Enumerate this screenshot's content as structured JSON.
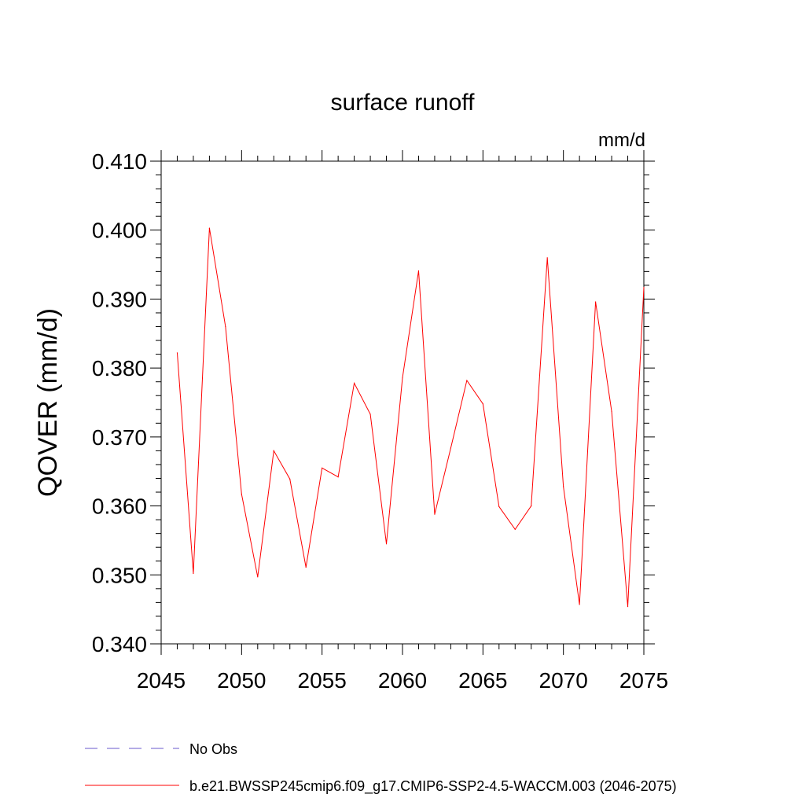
{
  "chart_data": {
    "type": "line",
    "title": "surface runoff",
    "units_label": "mm/d",
    "ylabel": "QOVER  (mm/d)",
    "xlabel": "",
    "xlim": [
      2045,
      2075
    ],
    "ylim": [
      0.34,
      0.41
    ],
    "x_ticks": [
      "2045",
      "2050",
      "2055",
      "2060",
      "2065",
      "2070",
      "2075"
    ],
    "y_ticks": [
      "0.340",
      "0.350",
      "0.360",
      "0.370",
      "0.380",
      "0.390",
      "0.400",
      "0.410"
    ],
    "grid": false,
    "legend_position": "bottom",
    "series": [
      {
        "name": "b.e21.BWSSP245cmip6.f09_g17.CMIP6-SSP2-4.5-WACCM.003 (2046-2075)",
        "color": "#ff0000",
        "style": "solid",
        "x": [
          2046,
          2047,
          2048,
          2049,
          2050,
          2051,
          2052,
          2053,
          2054,
          2055,
          2056,
          2057,
          2058,
          2059,
          2060,
          2061,
          2062,
          2063,
          2064,
          2065,
          2066,
          2067,
          2068,
          2069,
          2070,
          2071,
          2072,
          2073,
          2074,
          2075
        ],
        "values": [
          0.3822,
          0.3502,
          0.4003,
          0.386,
          0.3617,
          0.3497,
          0.368,
          0.3639,
          0.3511,
          0.3655,
          0.3642,
          0.3778,
          0.3733,
          0.3545,
          0.3786,
          0.3941,
          0.3588,
          0.3684,
          0.3782,
          0.3748,
          0.3599,
          0.3566,
          0.36,
          0.396,
          0.3628,
          0.3457,
          0.3896,
          0.3737,
          0.3454,
          0.3917
        ]
      },
      {
        "name": "No Obs",
        "color": "#6a5acd",
        "style": "dashed",
        "x": [],
        "values": []
      }
    ]
  }
}
